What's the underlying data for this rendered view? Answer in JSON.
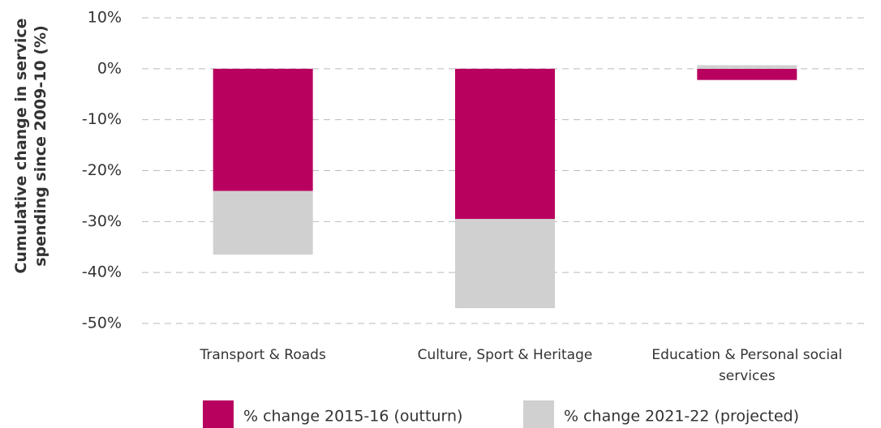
{
  "chart_data": {
    "type": "stacked_bar",
    "y_label": "Cumulative change in service spending since 2009-10 (%)",
    "categories": [
      "Transport & Roads",
      "Culture, Sport & Heritage",
      "Education & Personal social services"
    ],
    "series": [
      {
        "name": "% change 2015-16 (outturn)",
        "color": "#b8005f",
        "values": [
          -24,
          -29.5,
          -2.2
        ]
      },
      {
        "name": "% change 2021-22 (projected)",
        "color": "#d0d0d0",
        "values": [
          -12.5,
          -17.5,
          0.7
        ]
      }
    ],
    "ylim": [
      -50,
      10
    ],
    "yticks": [
      {
        "value": 10,
        "label": "10%"
      },
      {
        "value": 0,
        "label": "0%"
      },
      {
        "value": -10,
        "label": "-10%"
      },
      {
        "value": -20,
        "label": "-20%"
      },
      {
        "value": -30,
        "label": "-30%"
      },
      {
        "value": -40,
        "label": "-40%"
      },
      {
        "value": -50,
        "label": "-50%"
      }
    ],
    "grid": true,
    "legend": "bottom"
  }
}
